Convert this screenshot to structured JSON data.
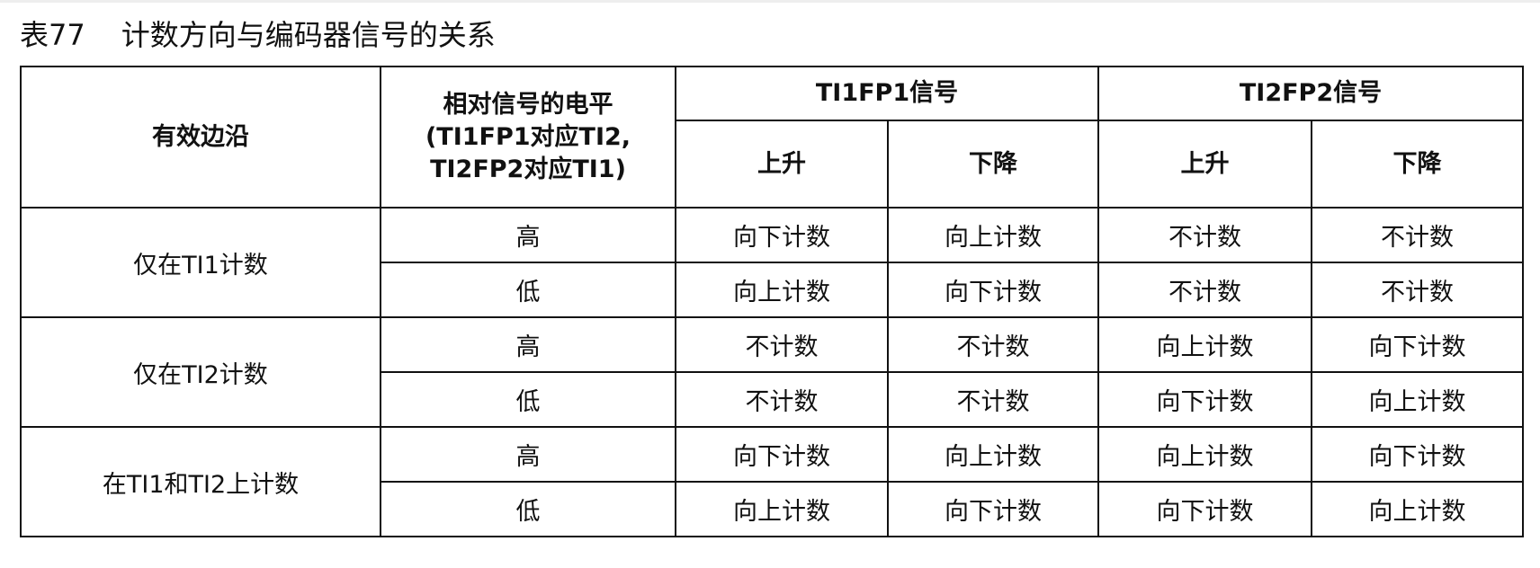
{
  "title": {
    "number": "表77",
    "text": "计数方向与编码器信号的关系"
  },
  "header": {
    "edge": "有效边沿",
    "level_line1": "相对信号的电平",
    "level_line2": "(TI1FP1对应TI2,",
    "level_line3": "TI2FP2对应TI1)",
    "ti1fp1": "TI1FP1信号",
    "ti2fp2": "TI2FP2信号",
    "rise": "上升",
    "fall": "下降"
  },
  "groups": [
    {
      "label": "仅在TI1计数",
      "rows": [
        {
          "level": "高",
          "cells": [
            "向下计数",
            "向上计数",
            "不计数",
            "不计数"
          ]
        },
        {
          "level": "低",
          "cells": [
            "向上计数",
            "向下计数",
            "不计数",
            "不计数"
          ]
        }
      ]
    },
    {
      "label": "仅在TI2计数",
      "rows": [
        {
          "level": "高",
          "cells": [
            "不计数",
            "不计数",
            "向上计数",
            "向下计数"
          ]
        },
        {
          "level": "低",
          "cells": [
            "不计数",
            "不计数",
            "向下计数",
            "向上计数"
          ]
        }
      ]
    },
    {
      "label": "在TI1和TI2上计数",
      "rows": [
        {
          "level": "高",
          "cells": [
            "向下计数",
            "向上计数",
            "向上计数",
            "向下计数"
          ]
        },
        {
          "level": "低",
          "cells": [
            "向上计数",
            "向下计数",
            "向下计数",
            "向上计数"
          ]
        }
      ]
    }
  ]
}
